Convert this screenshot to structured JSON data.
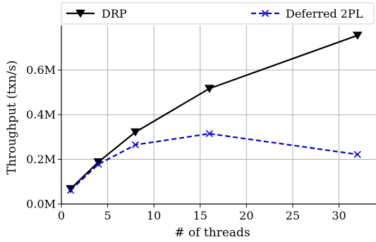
{
  "chart_data": {
    "type": "line",
    "xlabel": "# of threads",
    "ylabel": "Throughput (txn/s)",
    "xlim": [
      0,
      34
    ],
    "ylim": [
      0,
      0.8
    ],
    "x_ticks": [
      0,
      5,
      10,
      15,
      20,
      25,
      30
    ],
    "x_tick_labels": [
      "0",
      "5",
      "10",
      "15",
      "20",
      "25",
      "30"
    ],
    "y_ticks": [
      0,
      0.2,
      0.4,
      0.6
    ],
    "y_tick_labels": [
      "0.0M",
      "0.2M",
      "0.4M",
      "0.6M"
    ],
    "y_unit": "M txn/s",
    "grid": true,
    "legend_placement": "top, above plot",
    "series": [
      {
        "name": "DRP",
        "color": "#000000",
        "line_style": "solid",
        "marker": "triangle-down",
        "x": [
          1,
          4,
          8,
          16,
          32
        ],
        "values": [
          0.068,
          0.188,
          0.322,
          0.517,
          0.755
        ]
      },
      {
        "name": "Deferred 2PL",
        "color": "#0000dd",
        "line_style": "dashed",
        "marker": "x",
        "x": [
          1,
          4,
          8,
          16,
          32
        ],
        "values": [
          0.062,
          0.178,
          0.265,
          0.315,
          0.222
        ]
      }
    ]
  }
}
